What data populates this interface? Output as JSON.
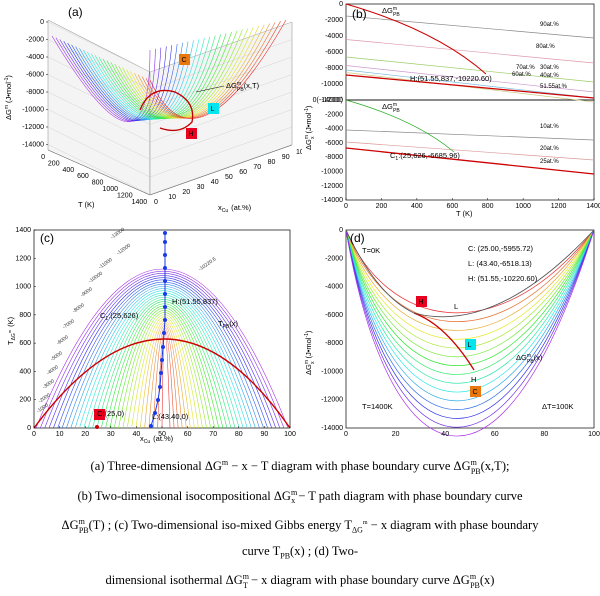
{
  "panel_a": {
    "label": "(a)",
    "zlabel": "ΔG",
    "zlabel_sup": "m",
    "zlabel_unit": "(J•mol",
    "zlabel_unit_sup": "-1",
    "zlabel_unit_end": ")",
    "xlabel": "T  (K)",
    "ylabel_main": "x",
    "ylabel_sub": "Cu",
    "ylabel_unit": "(at.%)",
    "curve_label": "ΔG",
    "curve_label_sup": "m",
    "curve_label_sub": "PB",
    "curve_label_end": "(x,T)",
    "z_ticks": [
      "0",
      "-2000",
      "-4000",
      "-6000",
      "-8000",
      "-10000",
      "-12000",
      "-14000"
    ],
    "t_ticks": [
      "0",
      "200",
      "400",
      "600",
      "800",
      "1000",
      "1200",
      "1400"
    ],
    "x_ticks": [
      "0",
      "10",
      "20",
      "30",
      "40",
      "50",
      "60",
      "70",
      "80",
      "90",
      "100"
    ],
    "markers": [
      {
        "symbol": "C",
        "color": "#e8770e"
      },
      {
        "symbol": "L",
        "color": "#00e5ee"
      },
      {
        "symbol": "H",
        "color": "#e8001e"
      }
    ]
  },
  "panel_b": {
    "label": "(b)",
    "ylabel": "ΔG",
    "ylabel_sup": "m",
    "ylabel_sub": "x",
    "ylabel_unit": "(J•mol",
    "ylabel_unit_sup": "-1",
    "ylabel_unit_end": ")",
    "xlabel": "T  (K)",
    "top_curve_label": "ΔG",
    "top_curve_sup": "m",
    "top_curve_sub": "PB",
    "bottom_curve_label": "ΔG",
    "bottom_curve_sup": "m",
    "bottom_curve_sub": "PB",
    "h_label": "H:(51.55,837,-10220.60)",
    "c1_label": "C",
    "c1_sub": "1",
    "c1_rest": ":(25,626,-6685.96)",
    "series_top": [
      "90at.%",
      "80at.%",
      "70at.%",
      "60at.%",
      "30at.%",
      "40at.%",
      "51.55at.%"
    ],
    "series_bottom": [
      "10at.%",
      "20at.%",
      "25at.%"
    ],
    "top_ticks": [
      "0",
      "-2000",
      "-4000",
      "-6000",
      "-8000",
      "-10000",
      "-12000"
    ],
    "bottom_ticks": [
      "0(-14000)",
      "-2000",
      "-4000",
      "-6000",
      "-8000",
      "-10000",
      "-12000",
      "-14000"
    ],
    "x_ticks": [
      "0",
      "200",
      "400",
      "600",
      "800",
      "1000",
      "1200",
      "1400"
    ]
  },
  "panel_c": {
    "label": "(c)",
    "ylabel": "T",
    "ylabel_sub": "ΔG",
    "ylabel_subsup": "m",
    "ylabel_unit": "(K)",
    "xlabel_main": "x",
    "xlabel_sub": "Cu",
    "xlabel_unit": "(at.%)",
    "h_label": "H:(51.55,837)",
    "c1_label": "C",
    "c1_sub": "1",
    "c1_rest": ":(25,626)",
    "c_label": "C:(25,0)",
    "l_label": "L:(43.40,0)",
    "tpb_label": "T",
    "tpb_sub": "PB",
    "tpb_end": "(x)",
    "contour_labels": [
      "-13000",
      "-12000",
      "-11000",
      "-10000",
      "-9000",
      "-8000",
      "-7000",
      "-6000",
      "-5000",
      "-4000",
      "-3000",
      "-2000",
      "-1000",
      "-10220.6"
    ],
    "y_ticks": [
      "0",
      "200",
      "400",
      "600",
      "800",
      "1000",
      "1200",
      "1400"
    ],
    "x_ticks": [
      "0",
      "10",
      "20",
      "30",
      "40",
      "50",
      "60",
      "70",
      "80",
      "90",
      "100"
    ]
  },
  "panel_d": {
    "label": "(d)",
    "ylabel": "ΔG",
    "ylabel_sup": "m",
    "ylabel_sub": "x",
    "ylabel_unit": "(J•mol",
    "ylabel_unit_sup": "-1",
    "ylabel_unit_end": ")",
    "t0_label": "T=0K",
    "t1400_label": "T=1400K",
    "dt_label": "ΔT=100K",
    "c_coord": "C: (25.00,-5955.72)",
    "l_coord": "L: (43.40,-6518.13)",
    "h_coord": "H: (51.55,-10220.60)",
    "l_text": "L",
    "h_text": "H",
    "pb_label": "ΔG",
    "pb_sup": "m",
    "pb_sub": "PB",
    "pb_end": "(x)",
    "y_ticks": [
      "0",
      "-2000",
      "-4000",
      "-6000",
      "-8000",
      "-10000",
      "-12000",
      "-14000"
    ],
    "x_ticks": [
      "0",
      "20",
      "40",
      "60",
      "80",
      "100"
    ],
    "markers": [
      {
        "symbol": "C",
        "color": "#e8770e"
      },
      {
        "symbol": "L",
        "color": "#00e5ee"
      },
      {
        "symbol": "H",
        "color": "#e8001e"
      }
    ]
  },
  "caption": {
    "line1": "(a) Three-dimensional  ΔG",
    "line1_sup": "m",
    "line1_mid": " − x − T  diagram with phase boundary curve  ΔG",
    "line1_sup2": "m",
    "line1_sub2": "PB",
    "line1_end": "(x,T);",
    "line2": "(b) Two-dimensional isocompositional  ΔG",
    "line2_sup": "m",
    "line2_sub": "x",
    "line2_end": " − T  path diagram with phase boundary curve",
    "line3": "ΔG",
    "line3_sup": "m",
    "line3_sub": "PB",
    "line3_end": "(T) ;  (c)  Two-dimensional  iso-mixed  Gibbs  energy  T",
    "line3_sub2": "ΔG",
    "line3_sub2sup": "m",
    "line3_tail": " − x   diagram  with  phase  boundary",
    "line4": "curve   T",
    "line4_sub": "PB",
    "line4_end": "(x) ;  (d)  Two-",
    "line5": "dimensional isothermal  ΔG",
    "line5_sup": "m",
    "line5_sub": "T",
    "line5_end": " − x  diagram with phase boundary curve  ΔG",
    "line5_sup2": "m",
    "line5_sub2": "PB",
    "line5_tail": "(x)"
  }
}
